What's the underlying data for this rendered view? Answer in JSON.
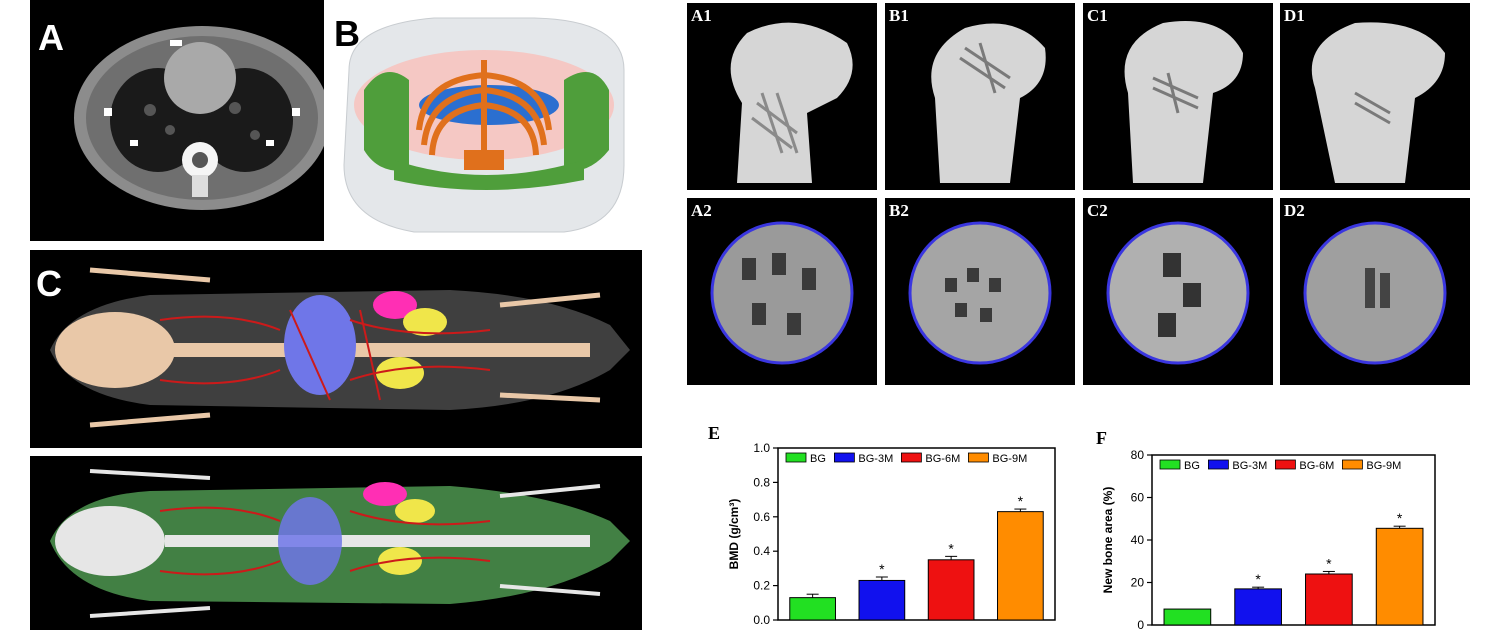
{
  "panels": {
    "a": "A",
    "b": "B",
    "c": "C",
    "femur": [
      "A1",
      "B1",
      "C1",
      "D1"
    ],
    "cross": [
      "A2",
      "B2",
      "C2",
      "D2"
    ]
  },
  "colors": {
    "BG": "#22e022",
    "BG-3M": "#1111ee",
    "BG-6M": "#ee1111",
    "BG-9M": "#ff8c00"
  },
  "chart_data": [
    {
      "type": "bar",
      "title": "E",
      "xlabel": "",
      "ylabel": "BMD (g/cm³)",
      "ylim": [
        0,
        1.0
      ],
      "yticks": [
        "0.0",
        "0.2",
        "0.4",
        "0.6",
        "0.8",
        "1.0"
      ],
      "categories": [
        "BG",
        "BG-3M",
        "BG-6M",
        "BG-9M"
      ],
      "values": [
        0.13,
        0.23,
        0.35,
        0.63
      ],
      "errors": [
        0.02,
        0.02,
        0.02,
        0.015
      ],
      "significance": [
        "",
        "*",
        "*",
        "*"
      ],
      "legend": [
        "BG",
        "BG-3M",
        "BG-6M",
        "BG-9M"
      ],
      "legend_position": "top"
    },
    {
      "type": "bar",
      "title": "F",
      "xlabel": "",
      "ylabel": "New bone area (%)",
      "ylim": [
        0,
        80
      ],
      "yticks": [
        "0",
        "20",
        "40",
        "60",
        "80"
      ],
      "categories": [
        "BG",
        "BG-3M",
        "BG-6M",
        "BG-9M"
      ],
      "values": [
        7.5,
        17,
        24,
        45.5
      ],
      "errors": [
        0,
        0.8,
        1.2,
        1.0
      ],
      "significance": [
        "",
        "*",
        "*",
        "*"
      ],
      "legend": [
        "BG",
        "BG-3M",
        "BG-6M",
        "BG-9M"
      ],
      "legend_position": "top"
    }
  ]
}
